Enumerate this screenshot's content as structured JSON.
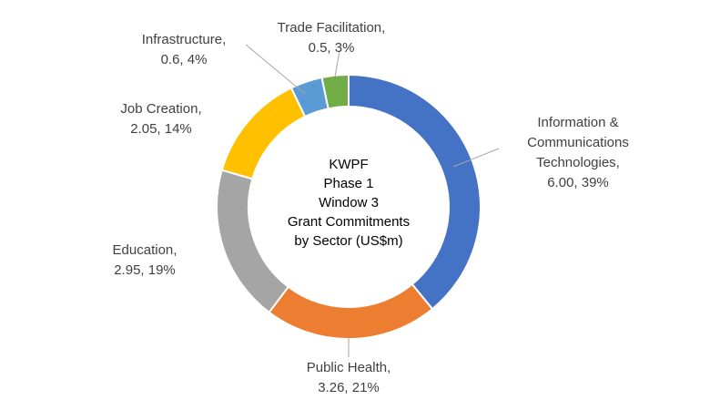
{
  "chart_data": {
    "type": "pie",
    "variant": "doughnut",
    "title_lines": [
      "KWPF",
      "Phase 1",
      "Window 3",
      "Grant Commitments",
      "by Sector (US$m)"
    ],
    "slices": [
      {
        "name": "Information & Communications Technologies",
        "value": 6.0,
        "percent": 39,
        "label_lines": [
          "Information &",
          "Communications",
          "Technologies,",
          "6.00, 39%"
        ],
        "color": "#4472C4"
      },
      {
        "name": "Public Health",
        "value": 3.26,
        "percent": 21,
        "label_lines": [
          "Public Health,",
          "3.26, 21%"
        ],
        "color": "#ED7D31"
      },
      {
        "name": "Education",
        "value": 2.95,
        "percent": 19,
        "label_lines": [
          "Education,",
          "2.95, 19%"
        ],
        "color": "#A5A5A5"
      },
      {
        "name": "Job Creation",
        "value": 2.05,
        "percent": 14,
        "label_lines": [
          "Job Creation,",
          "2.05, 14%"
        ],
        "color": "#FFC000"
      },
      {
        "name": "Infrastructure",
        "value": 0.6,
        "percent": 4,
        "label_lines": [
          "Infrastructure,",
          "0.6, 4%"
        ],
        "color": "#5B9BD5"
      },
      {
        "name": "Trade Facilitation",
        "value": 0.5,
        "percent": 3,
        "label_lines": [
          "Trade Facilitation,",
          "0.5, 3%"
        ],
        "color": "#70AD47"
      }
    ],
    "legend": "none"
  }
}
